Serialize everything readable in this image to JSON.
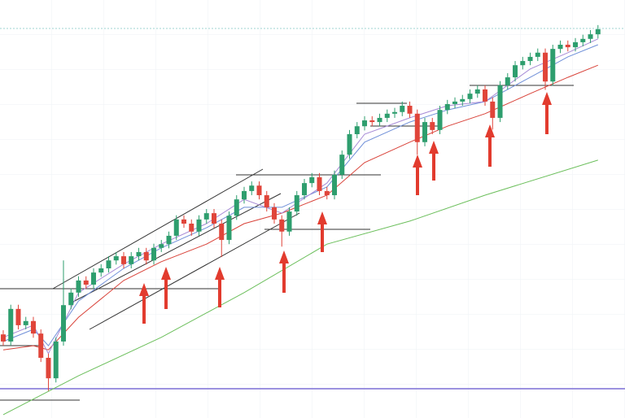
{
  "chart_data": {
    "type": "candlestick",
    "xlim": [
      -0.43,
      82.59
    ],
    "ylim": [
      0,
      100
    ],
    "up_color": "#2e9e6e",
    "down_color": "#e0453a",
    "candles": {
      "open": [
        20.0,
        18.3,
        26.1,
        22.2,
        23.2,
        20.2,
        14.4,
        9.5,
        18.3,
        27.0,
        30.0,
        32.9,
        31.9,
        34.8,
        35.8,
        37.7,
        38.7,
        36.8,
        38.7,
        39.7,
        37.7,
        40.7,
        41.6,
        43.6,
        47.5,
        46.5,
        44.6,
        47.5,
        49.0,
        46.5,
        42.6,
        48.4,
        52.3,
        54.3,
        55.6,
        53.3,
        50.4,
        47.5,
        44.6,
        49.4,
        53.3,
        56.2,
        57.6,
        54.3,
        53.3,
        58.2,
        63.0,
        67.9,
        69.8,
        71.2,
        70.8,
        71.8,
        72.8,
        73.2,
        74.7,
        72.8,
        66.0,
        70.8,
        68.9,
        73.7,
        75.1,
        75.7,
        76.3,
        77.6,
        78.6,
        75.7,
        71.8,
        79.6,
        81.5,
        84.4,
        85.4,
        86.4,
        87.4,
        80.5,
        88.3,
        89.3,
        88.7,
        89.9,
        90.7,
        91.8
      ],
      "high": [
        21.0,
        27.1,
        27.1,
        24.2,
        24.2,
        21.2,
        15.4,
        19.3,
        37.7,
        31.0,
        33.9,
        33.9,
        35.8,
        36.8,
        38.7,
        39.7,
        39.7,
        39.7,
        40.7,
        40.7,
        41.7,
        42.6,
        44.6,
        48.5,
        48.5,
        47.5,
        48.5,
        50.0,
        50.0,
        47.5,
        49.4,
        53.3,
        55.3,
        56.6,
        56.6,
        54.3,
        51.4,
        48.5,
        50.4,
        54.3,
        57.2,
        58.6,
        58.6,
        55.3,
        59.2,
        64.0,
        68.9,
        70.8,
        72.2,
        72.2,
        72.8,
        73.8,
        74.2,
        75.7,
        75.7,
        73.8,
        71.8,
        71.8,
        74.7,
        76.1,
        76.7,
        77.3,
        78.6,
        79.6,
        79.6,
        76.7,
        80.6,
        82.5,
        85.4,
        86.4,
        87.4,
        88.4,
        88.4,
        89.3,
        90.3,
        90.3,
        90.9,
        91.7,
        92.8,
        94.0
      ],
      "low": [
        17.3,
        17.3,
        21.2,
        21.2,
        19.2,
        13.4,
        6.5,
        8.5,
        17.3,
        26.0,
        29.0,
        30.9,
        30.9,
        33.8,
        34.8,
        36.7,
        35.8,
        35.8,
        37.7,
        36.7,
        36.7,
        39.7,
        40.6,
        42.6,
        45.5,
        43.6,
        43.6,
        46.5,
        45.5,
        38.5,
        41.6,
        47.4,
        51.3,
        53.3,
        52.3,
        49.4,
        46.5,
        41.0,
        43.6,
        48.4,
        52.3,
        55.2,
        53.3,
        52.3,
        52.3,
        57.2,
        62.0,
        66.9,
        68.8,
        69.8,
        69.8,
        70.8,
        71.8,
        72.2,
        71.8,
        63.0,
        65.0,
        67.9,
        67.9,
        72.7,
        74.1,
        74.7,
        75.3,
        76.6,
        74.7,
        69.0,
        70.8,
        78.6,
        80.5,
        83.4,
        84.4,
        85.4,
        78.5,
        79.5,
        87.3,
        87.7,
        87.7,
        88.9,
        89.7,
        90.8
      ],
      "close": [
        18.3,
        26.1,
        22.2,
        23.2,
        20.2,
        14.4,
        9.5,
        18.3,
        27.0,
        30.0,
        32.9,
        31.9,
        34.8,
        35.8,
        37.7,
        38.7,
        36.8,
        38.7,
        39.7,
        37.7,
        40.7,
        41.6,
        43.6,
        47.5,
        46.5,
        44.6,
        47.5,
        49.0,
        46.5,
        42.6,
        48.4,
        52.3,
        54.3,
        55.6,
        53.3,
        50.4,
        47.5,
        44.6,
        49.4,
        53.3,
        56.2,
        57.6,
        54.3,
        53.3,
        58.2,
        63.0,
        67.9,
        69.8,
        71.2,
        70.8,
        71.8,
        72.8,
        73.2,
        74.7,
        72.8,
        66.0,
        70.8,
        68.9,
        73.7,
        75.1,
        75.7,
        76.3,
        77.6,
        78.6,
        75.7,
        71.8,
        79.6,
        81.5,
        84.4,
        85.4,
        86.4,
        87.4,
        80.5,
        88.3,
        89.3,
        88.7,
        89.9,
        90.7,
        91.8,
        93.0
      ]
    },
    "series": [
      {
        "color": "#6cbf5c",
        "x": [
          0,
          10,
          21,
          32,
          43,
          54,
          64,
          79
        ],
        "values": [
          0.8,
          10.1,
          19.3,
          30.0,
          41.6,
          47.1,
          53.3,
          61.7
        ]
      },
      {
        "color": "#d9433a",
        "x": [
          0,
          4,
          6,
          10,
          16,
          21,
          27,
          32,
          37,
          43,
          48,
          54,
          59,
          64,
          70,
          75,
          79
        ],
        "values": [
          16.3,
          17.3,
          16.3,
          24.1,
          32.9,
          37.4,
          41.6,
          46.5,
          49.0,
          53.3,
          61.1,
          66.0,
          69.8,
          72.8,
          77.6,
          81.5,
          84.4
        ]
      },
      {
        "color": "#6f8fd8",
        "x": [
          0,
          4,
          6,
          10,
          16,
          21,
          27,
          32,
          37,
          43,
          48,
          54,
          59,
          64,
          70,
          75,
          79
        ],
        "values": [
          18.3,
          21.2,
          17.3,
          28.0,
          35.8,
          40.7,
          45.5,
          50.4,
          50.4,
          55.3,
          66.0,
          70.8,
          73.7,
          75.7,
          81.5,
          86.4,
          89.3
        ]
      },
      {
        "color": "#a78bd6",
        "x": [
          0,
          4,
          6,
          10,
          16,
          21,
          27,
          32,
          37,
          43,
          48,
          54,
          59,
          64,
          70,
          75,
          79
        ],
        "values": [
          19.3,
          22.2,
          15.4,
          30.0,
          36.8,
          41.6,
          46.5,
          52.3,
          49.0,
          56.2,
          67.9,
          71.8,
          74.7,
          75.7,
          83.5,
          87.4,
          90.7
        ]
      }
    ]
  }
}
